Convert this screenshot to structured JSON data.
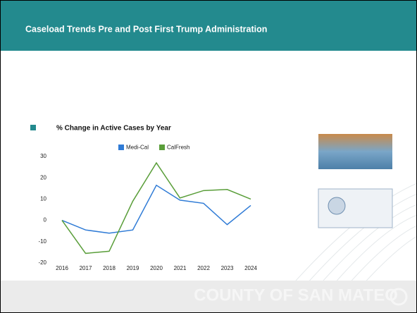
{
  "header": {
    "title": "Caseload Trends Pre and Post First Trump Administration"
  },
  "chart_data": {
    "type": "line",
    "title": "% Change in Active Cases by Year",
    "categories": [
      "2016",
      "2017",
      "2018",
      "2019",
      "2020",
      "2021",
      "2022",
      "2023",
      "2024"
    ],
    "series": [
      {
        "name": "Medi-Cal",
        "color": "#2f7bd6",
        "values": [
          0,
          -4.5,
          -6,
          -4.5,
          16.5,
          9.5,
          8,
          -2,
          7
        ]
      },
      {
        "name": "CalFresh",
        "color": "#5a9e3a",
        "values": [
          0,
          -15.5,
          -14.5,
          9,
          27,
          10.5,
          14,
          14.5,
          10
        ]
      }
    ],
    "ylim": [
      -20,
      30
    ],
    "yticks": [
      -20,
      -10,
      0,
      10,
      20,
      30
    ],
    "grid": false,
    "legend": "top"
  },
  "footer": {
    "logo": "COUNTY OF SAN MATEO"
  }
}
